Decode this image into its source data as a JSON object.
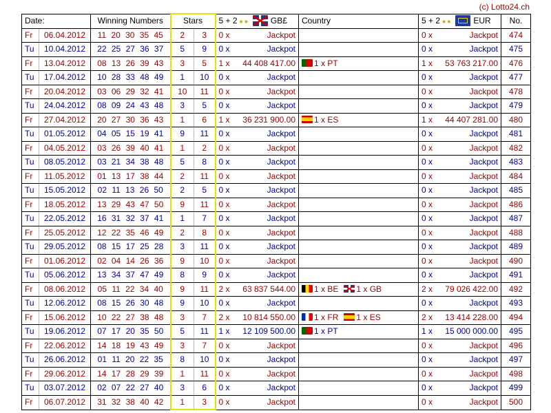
{
  "copyright": "(c) Lotto24.ch",
  "header": {
    "date": "Date:",
    "numbers": "Winning Numbers",
    "stars": "Stars",
    "gb": "5 + 2",
    "gb_currency": "GB£",
    "country": "Country",
    "eur": "5 + 2",
    "eur_currency": "EUR",
    "no": "No."
  },
  "colors": {
    "friday": "#990000",
    "tuesday": "#000099",
    "stars_border": "#e8e000"
  },
  "rows": [
    {
      "day": "Fr",
      "date": "06.04.2012",
      "nums": "11 20 30 35 45",
      "s1": "2",
      "s2": "3",
      "gbw": "0 x",
      "gbp": "Jackpot",
      "countries": [],
      "euw": "0 x",
      "eup": "Jackpot",
      "no": "474"
    },
    {
      "day": "Tu",
      "date": "10.04.2012",
      "nums": "22 25 27 36 37",
      "s1": "5",
      "s2": "9",
      "gbw": "0 x",
      "gbp": "Jackpot",
      "countries": [],
      "euw": "0 x",
      "eup": "Jackpot",
      "no": "475"
    },
    {
      "day": "Fr",
      "date": "13.04.2012",
      "nums": "08 13 26 39 43",
      "s1": "3",
      "s2": "5",
      "gbw": "1 x",
      "gbp": "44 408 417.00",
      "countries": [
        {
          "flag": "PT",
          "text": "1 x PT"
        }
      ],
      "euw": "1 x",
      "eup": "53 763 217.00",
      "no": "476"
    },
    {
      "day": "Tu",
      "date": "17.04.2012",
      "nums": "10 28 33 48 49",
      "s1": "1",
      "s2": "10",
      "gbw": "0 x",
      "gbp": "Jackpot",
      "countries": [],
      "euw": "0 x",
      "eup": "Jackpot",
      "no": "477"
    },
    {
      "day": "Fr",
      "date": "20.04.2012",
      "nums": "03 06 29 32 41",
      "s1": "10",
      "s2": "11",
      "gbw": "0 x",
      "gbp": "Jackpot",
      "countries": [],
      "euw": "0 x",
      "eup": "Jackpot",
      "no": "478"
    },
    {
      "day": "Tu",
      "date": "24.04.2012",
      "nums": "08 09 24 43 48",
      "s1": "3",
      "s2": "5",
      "gbw": "0 x",
      "gbp": "Jackpot",
      "countries": [],
      "euw": "0 x",
      "eup": "Jackpot",
      "no": "479"
    },
    {
      "day": "Fr",
      "date": "27.04.2012",
      "nums": "20 27 30 36 43",
      "s1": "1",
      "s2": "6",
      "gbw": "1 x",
      "gbp": "36 231 900.00",
      "countries": [
        {
          "flag": "ES",
          "text": "1 x ES"
        }
      ],
      "euw": "1 x",
      "eup": "44 407 281.00",
      "no": "480"
    },
    {
      "day": "Tu",
      "date": "01.05.2012",
      "nums": "04 05 15 19 41",
      "s1": "9",
      "s2": "11",
      "gbw": "0 x",
      "gbp": "Jackpot",
      "countries": [],
      "euw": "0 x",
      "eup": "Jackpot",
      "no": "481"
    },
    {
      "day": "Fr",
      "date": "04.05.2012",
      "nums": "03 26 39 40 41",
      "s1": "1",
      "s2": "2",
      "gbw": "0 x",
      "gbp": "Jackpot",
      "countries": [],
      "euw": "0 x",
      "eup": "Jackpot",
      "no": "482"
    },
    {
      "day": "Tu",
      "date": "08.05.2012",
      "nums": "03 21 34 38 48",
      "s1": "5",
      "s2": "8",
      "gbw": "0 x",
      "gbp": "Jackpot",
      "countries": [],
      "euw": "0 x",
      "eup": "Jackpot",
      "no": "483"
    },
    {
      "day": "Fr",
      "date": "11.05.2012",
      "nums": "01 13 17 38 44",
      "s1": "2",
      "s2": "11",
      "gbw": "0 x",
      "gbp": "Jackpot",
      "countries": [],
      "euw": "0 x",
      "eup": "Jackpot",
      "no": "484"
    },
    {
      "day": "Tu",
      "date": "15.05.2012",
      "nums": "02 11 13 26 50",
      "s1": "2",
      "s2": "5",
      "gbw": "0 x",
      "gbp": "Jackpot",
      "countries": [],
      "euw": "0 x",
      "eup": "Jackpot",
      "no": "485"
    },
    {
      "day": "Fr",
      "date": "18.05.2012",
      "nums": "13 29 43 47 50",
      "s1": "9",
      "s2": "11",
      "gbw": "0 x",
      "gbp": "Jackpot",
      "countries": [],
      "euw": "0 x",
      "eup": "Jackpot",
      "no": "486"
    },
    {
      "day": "Tu",
      "date": "22.05.2012",
      "nums": "16 31 32 37 41",
      "s1": "1",
      "s2": "7",
      "gbw": "0 x",
      "gbp": "Jackpot",
      "countries": [],
      "euw": "0 x",
      "eup": "Jackpot",
      "no": "487"
    },
    {
      "day": "Fr",
      "date": "25.05.2012",
      "nums": "12 22 35 46 49",
      "s1": "2",
      "s2": "8",
      "gbw": "0 x",
      "gbp": "Jackpot",
      "countries": [],
      "euw": "0 x",
      "eup": "Jackpot",
      "no": "488"
    },
    {
      "day": "Tu",
      "date": "29.05.2012",
      "nums": "08 15 17 25 28",
      "s1": "3",
      "s2": "11",
      "gbw": "0 x",
      "gbp": "Jackpot",
      "countries": [],
      "euw": "0 x",
      "eup": "Jackpot",
      "no": "489"
    },
    {
      "day": "Fr",
      "date": "01.06.2012",
      "nums": "02 04 14 26 36",
      "s1": "9",
      "s2": "10",
      "gbw": "0 x",
      "gbp": "Jackpot",
      "countries": [],
      "euw": "0 x",
      "eup": "Jackpot",
      "no": "490"
    },
    {
      "day": "Tu",
      "date": "05.06.2012",
      "nums": "13 34 37 47 49",
      "s1": "8",
      "s2": "9",
      "gbw": "0 x",
      "gbp": "Jackpot",
      "countries": [],
      "euw": "0 x",
      "eup": "Jackpot",
      "no": "491"
    },
    {
      "day": "Fr",
      "date": "08.06.2012",
      "nums": "05 11 22 34 40",
      "s1": "9",
      "s2": "11",
      "gbw": "2 x",
      "gbp": "63 837 544.00",
      "countries": [
        {
          "flag": "BE",
          "text": "1 x BE"
        },
        {
          "flag": "GB",
          "text": "1 x GB"
        }
      ],
      "euw": "2 x",
      "eup": "79 026 422.00",
      "no": "492"
    },
    {
      "day": "Tu",
      "date": "12.06.2012",
      "nums": "08 15 26 30 48",
      "s1": "9",
      "s2": "10",
      "gbw": "0 x",
      "gbp": "Jackpot",
      "countries": [],
      "euw": "0 x",
      "eup": "Jackpot",
      "no": "493"
    },
    {
      "day": "Fr",
      "date": "15.06.2012",
      "nums": "10 22 27 38 48",
      "s1": "3",
      "s2": "7",
      "gbw": "2 x",
      "gbp": "10 814 550.00",
      "countries": [
        {
          "flag": "FR",
          "text": "1 x FR"
        },
        {
          "flag": "ES",
          "text": "1 x ES"
        }
      ],
      "euw": "2 x",
      "eup": "13 414 228.00",
      "no": "494"
    },
    {
      "day": "Tu",
      "date": "19.06.2012",
      "nums": "07 17 20 35 50",
      "s1": "5",
      "s2": "11",
      "gbw": "1 x",
      "gbp": "12 109 500.00",
      "countries": [
        {
          "flag": "PT",
          "text": "1 x PT"
        }
      ],
      "euw": "1 x",
      "eup": "15 000 000.00",
      "no": "495"
    },
    {
      "day": "Fr",
      "date": "22.06.2012",
      "nums": "14 18 19 43 49",
      "s1": "3",
      "s2": "7",
      "gbw": "0 x",
      "gbp": "Jackpot",
      "countries": [],
      "euw": "0 x",
      "eup": "Jackpot",
      "no": "496"
    },
    {
      "day": "Tu",
      "date": "26.06.2012",
      "nums": "01 11 20 22 35",
      "s1": "8",
      "s2": "10",
      "gbw": "0 x",
      "gbp": "Jackpot",
      "countries": [],
      "euw": "0 x",
      "eup": "Jackpot",
      "no": "497"
    },
    {
      "day": "Fr",
      "date": "29.06.2012",
      "nums": "14 17 28 29 39",
      "s1": "1",
      "s2": "11",
      "gbw": "0 x",
      "gbp": "Jackpot",
      "countries": [],
      "euw": "0 x",
      "eup": "Jackpot",
      "no": "498"
    },
    {
      "day": "Tu",
      "date": "03.07.2012",
      "nums": "02 07 22 27 40",
      "s1": "3",
      "s2": "6",
      "gbw": "0 x",
      "gbp": "Jackpot",
      "countries": [],
      "euw": "0 x",
      "eup": "Jackpot",
      "no": "499"
    },
    {
      "day": "Fr",
      "date": "06.07.2012",
      "nums": "31 32 38 40 42",
      "s1": "1",
      "s2": "3",
      "gbw": "0 x",
      "gbp": "Jackpot",
      "countries": [],
      "euw": "0 x",
      "eup": "Jackpot",
      "no": "500"
    }
  ]
}
